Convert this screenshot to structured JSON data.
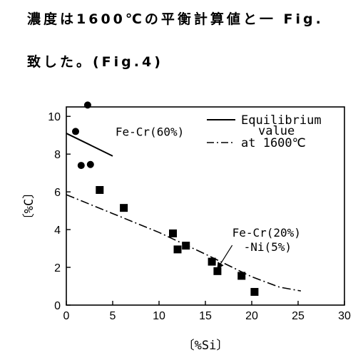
{
  "text": {
    "line1": "濃度は1600℃の平衡計算値と一 Fig.",
    "line2": "致した。(Fig.4)"
  },
  "chart_data": {
    "type": "scatter",
    "xlabel": "〔%Si〕",
    "ylabel": "〔%C〕",
    "xlim": [
      0,
      30
    ],
    "ylim": [
      0,
      10.5
    ],
    "xticks": [
      0,
      5,
      10,
      15,
      20,
      25,
      30
    ],
    "yticks": [
      0,
      2,
      4,
      6,
      8,
      10
    ],
    "legend": {
      "placement": "top-right",
      "entries": [
        {
          "style": "solid",
          "label": "Equilibrium"
        },
        {
          "style": "dash-dot",
          "label_lines": [
            "value",
            "at 1600℃"
          ]
        }
      ]
    },
    "series": [
      {
        "name": "Fe-Cr(60%)",
        "marker": "circle",
        "points": [
          [
            1.0,
            9.2
          ],
          [
            1.6,
            7.4
          ],
          [
            2.3,
            10.6
          ],
          [
            2.6,
            7.45
          ]
        ]
      },
      {
        "name": "Fe-Cr(20%)-Ni(5%)",
        "marker": "square",
        "points": [
          [
            3.6,
            6.1
          ],
          [
            6.2,
            5.15
          ],
          [
            11.5,
            3.8
          ],
          [
            12.0,
            2.95
          ],
          [
            12.9,
            3.15
          ],
          [
            15.7,
            2.3
          ],
          [
            16.3,
            1.8
          ],
          [
            18.9,
            1.55
          ],
          [
            20.3,
            0.7
          ]
        ]
      }
    ],
    "lines": [
      {
        "style": "solid",
        "points": [
          [
            0,
            9.1
          ],
          [
            5.0,
            7.9
          ]
        ]
      },
      {
        "style": "dash-dot",
        "points": [
          [
            0,
            5.85
          ],
          [
            5,
            4.85
          ],
          [
            10,
            3.85
          ],
          [
            15,
            2.7
          ],
          [
            20,
            1.5
          ],
          [
            23,
            0.95
          ],
          [
            25.3,
            0.75
          ]
        ]
      }
    ],
    "annotations": [
      {
        "text": "Fe-Cr(60%)",
        "x": 5.3,
        "y": 8.6,
        "arrow_to": [
          3.0,
          8.45
        ]
      },
      {
        "text_lines": [
          "Fe-Cr(20%)",
          "-Ni(5%)"
        ],
        "x": 18.2,
        "y": 3.7,
        "arrow_to": [
          15.9,
          2.35
        ]
      }
    ]
  }
}
